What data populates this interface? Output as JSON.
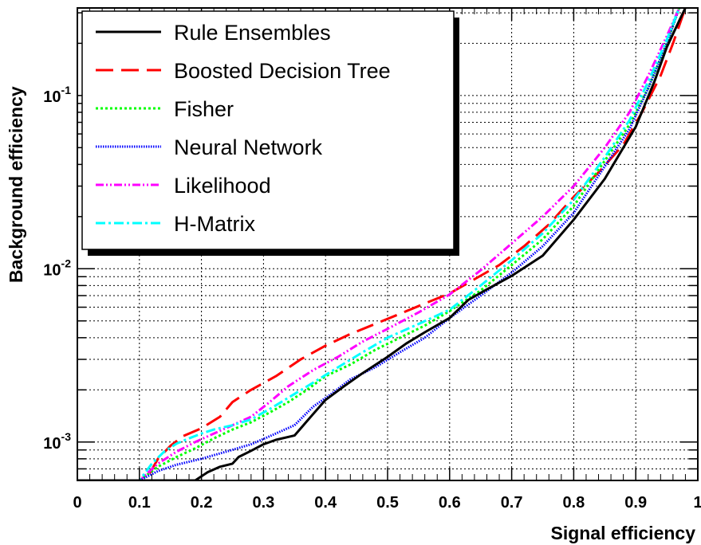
{
  "chart_data": {
    "type": "line",
    "xlabel": "Signal efficiency",
    "ylabel": "Background efficiency",
    "xlim": [
      0,
      1
    ],
    "ylim": [
      0.0006,
      0.32
    ],
    "yscale": "log",
    "x_ticks": [
      "0",
      "0.1",
      "0.2",
      "0.3",
      "0.4",
      "0.5",
      "0.6",
      "0.7",
      "0.8",
      "0.9",
      "1"
    ],
    "y_ticks": [
      {
        "base": "10",
        "exp": "-3",
        "value": 0.001
      },
      {
        "base": "10",
        "exp": "-2",
        "value": 0.01
      },
      {
        "base": "10",
        "exp": "-1",
        "value": 0.1
      }
    ],
    "grid": true,
    "legend_position": "top-left",
    "series": [
      {
        "name": "Rule Ensembles",
        "color": "#000000",
        "dash": "solid",
        "x": [
          0.0,
          0.18,
          0.19,
          0.21,
          0.23,
          0.25,
          0.26,
          0.28,
          0.3,
          0.32,
          0.35,
          0.38,
          0.4,
          0.43,
          0.46,
          0.5,
          0.53,
          0.56,
          0.6,
          0.63,
          0.66,
          0.7,
          0.75,
          0.8,
          0.85,
          0.9,
          0.93,
          0.95,
          0.97,
          0.98
        ],
        "y": [
          0.0006,
          0.0006,
          0.0006,
          0.00067,
          0.00072,
          0.00075,
          0.00082,
          0.00089,
          0.00097,
          0.00103,
          0.00109,
          0.00145,
          0.00175,
          0.0021,
          0.0025,
          0.0031,
          0.0037,
          0.0043,
          0.0052,
          0.0066,
          0.0076,
          0.0091,
          0.0119,
          0.0192,
          0.033,
          0.066,
          0.12,
          0.19,
          0.27,
          0.32
        ]
      },
      {
        "name": "Boosted Decision Tree",
        "color": "#ff0000",
        "dash": "long-dash",
        "x": [
          0.0,
          0.11,
          0.13,
          0.15,
          0.17,
          0.2,
          0.23,
          0.25,
          0.28,
          0.32,
          0.36,
          0.4,
          0.44,
          0.48,
          0.52,
          0.56,
          0.6,
          0.64,
          0.68,
          0.72,
          0.76,
          0.8,
          0.84,
          0.88,
          0.91,
          0.94,
          0.96,
          0.98
        ],
        "y": [
          0.0006,
          0.0006,
          0.0008,
          0.00095,
          0.00108,
          0.0012,
          0.0014,
          0.0017,
          0.002,
          0.0024,
          0.003,
          0.0036,
          0.0042,
          0.0048,
          0.0055,
          0.0063,
          0.0072,
          0.0087,
          0.0105,
          0.0135,
          0.018,
          0.026,
          0.036,
          0.052,
          0.08,
          0.13,
          0.2,
          0.32
        ]
      },
      {
        "name": "Fisher",
        "color": "#00ff00",
        "dash": "dot",
        "x": [
          0.0,
          0.1,
          0.13,
          0.16,
          0.19,
          0.22,
          0.25,
          0.28,
          0.31,
          0.34,
          0.37,
          0.4,
          0.44,
          0.48,
          0.52,
          0.56,
          0.6,
          0.65,
          0.7,
          0.75,
          0.8,
          0.85,
          0.89,
          0.92,
          0.95,
          0.97
        ],
        "y": [
          0.0006,
          0.0006,
          0.00072,
          0.00082,
          0.00092,
          0.00105,
          0.00118,
          0.0013,
          0.00148,
          0.0017,
          0.002,
          0.0024,
          0.0028,
          0.0034,
          0.004,
          0.0047,
          0.0057,
          0.0075,
          0.0105,
          0.0148,
          0.023,
          0.042,
          0.068,
          0.11,
          0.2,
          0.32
        ]
      },
      {
        "name": "Neural Network",
        "color": "#0000ff",
        "dash": "fine-dot",
        "x": [
          0.0,
          0.1,
          0.13,
          0.16,
          0.2,
          0.24,
          0.28,
          0.31,
          0.35,
          0.38,
          0.41,
          0.44,
          0.48,
          0.52,
          0.56,
          0.6,
          0.65,
          0.7,
          0.75,
          0.8,
          0.85,
          0.89,
          0.92,
          0.95,
          0.97
        ],
        "y": [
          0.0006,
          0.0006,
          0.00068,
          0.00074,
          0.0008,
          0.00088,
          0.00097,
          0.00108,
          0.00125,
          0.0016,
          0.0019,
          0.0023,
          0.0027,
          0.0033,
          0.004,
          0.0052,
          0.007,
          0.0095,
          0.0135,
          0.021,
          0.039,
          0.064,
          0.11,
          0.2,
          0.32
        ]
      },
      {
        "name": "Likelihood",
        "color": "#ff00ff",
        "dash": "dash-dot-dot",
        "x": [
          0.0,
          0.1,
          0.13,
          0.16,
          0.19,
          0.22,
          0.25,
          0.28,
          0.31,
          0.34,
          0.38,
          0.42,
          0.46,
          0.5,
          0.55,
          0.6,
          0.65,
          0.7,
          0.75,
          0.8,
          0.85,
          0.89,
          0.92,
          0.95,
          0.97
        ],
        "y": [
          0.0006,
          0.0006,
          0.00075,
          0.00088,
          0.001,
          0.00112,
          0.00125,
          0.0014,
          0.0017,
          0.0021,
          0.0026,
          0.0031,
          0.0038,
          0.0045,
          0.0056,
          0.0071,
          0.0098,
          0.014,
          0.02,
          0.03,
          0.05,
          0.08,
          0.13,
          0.22,
          0.32
        ]
      },
      {
        "name": "H-Matrix",
        "color": "#00ffff",
        "dash": "dash-dot",
        "x": [
          0.0,
          0.1,
          0.12,
          0.14,
          0.16,
          0.18,
          0.2,
          0.22,
          0.25,
          0.28,
          0.31,
          0.34,
          0.38,
          0.42,
          0.46,
          0.5,
          0.55,
          0.6,
          0.65,
          0.7,
          0.75,
          0.8,
          0.85,
          0.89,
          0.92,
          0.95,
          0.97
        ],
        "y": [
          0.0006,
          0.0006,
          0.00075,
          0.00088,
          0.00098,
          0.00105,
          0.00112,
          0.00118,
          0.00125,
          0.00135,
          0.00155,
          0.0018,
          0.0022,
          0.0027,
          0.0033,
          0.004,
          0.0048,
          0.0058,
          0.008,
          0.0112,
          0.016,
          0.025,
          0.044,
          0.072,
          0.12,
          0.21,
          0.32
        ]
      }
    ]
  }
}
